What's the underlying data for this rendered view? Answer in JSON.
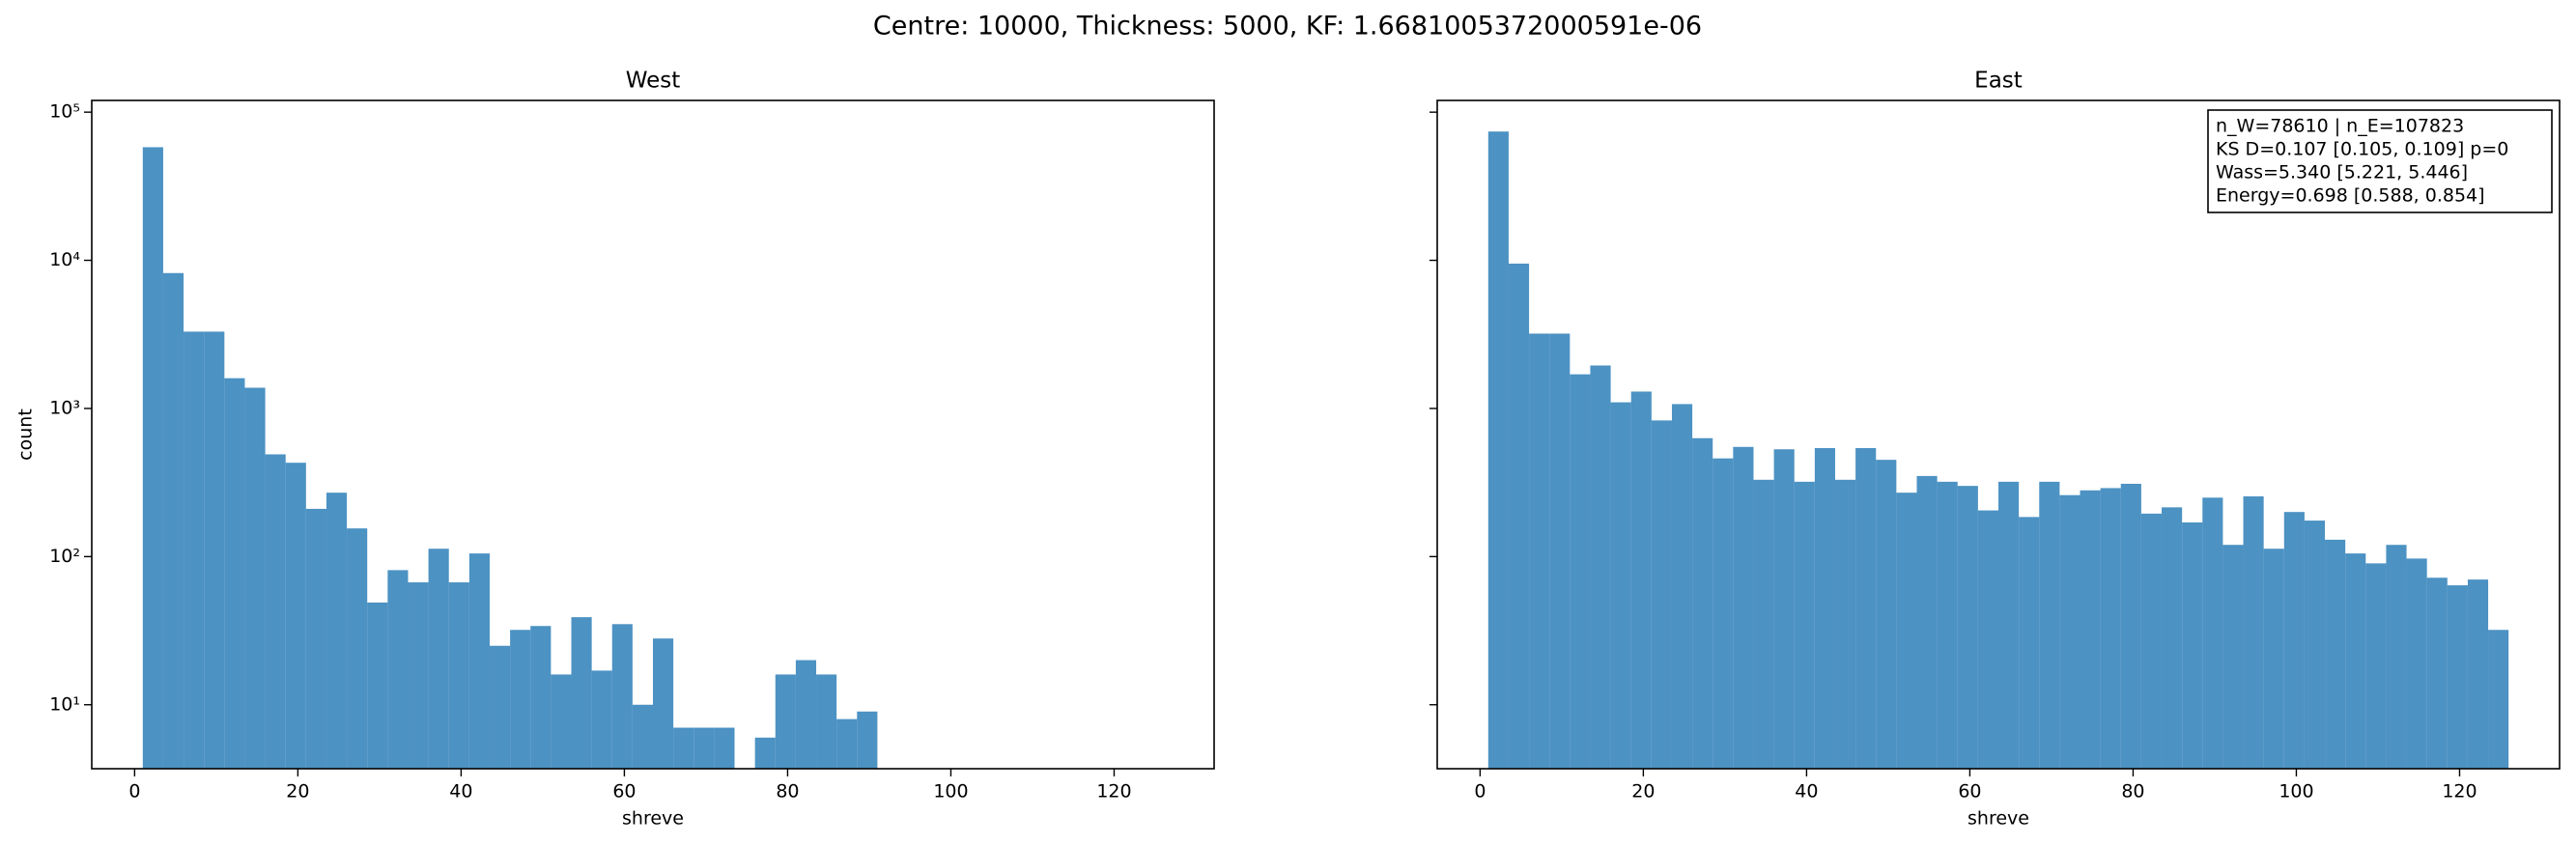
{
  "title": "Centre: 10000, Thickness: 5000, KF: 1.6681005372000591e-06",
  "chart_data": [
    {
      "type": "histogram",
      "title": "West",
      "xlabel": "shreve",
      "ylabel": "count",
      "color": "#1f77b4",
      "alpha": 0.8,
      "yscale": "log",
      "ytick_labels": true,
      "bins": [
        1,
        3.5,
        6,
        8.5,
        11,
        13.5,
        16,
        18.5,
        21,
        23.5,
        26,
        28.5,
        31,
        33.5,
        36,
        38.5,
        41,
        43.5,
        46,
        48.5,
        51,
        53.5,
        56,
        58.5,
        61,
        63.5,
        66,
        68.5,
        71,
        73.5,
        76,
        78.5,
        81,
        83.5,
        86,
        88.5,
        91,
        93.5,
        96,
        98.5,
        101,
        103.5,
        106,
        108.5,
        111,
        113.5,
        116,
        118.5,
        121,
        123.5,
        126
      ],
      "values": [
        58000,
        8200,
        3300,
        3300,
        1600,
        1380,
        490,
        430,
        210,
        270,
        155,
        49,
        81,
        67,
        113,
        67,
        105,
        25,
        32,
        34,
        16,
        39,
        17,
        35,
        10,
        28,
        7,
        7,
        7,
        0,
        6,
        16,
        20,
        16,
        8,
        9,
        0,
        0,
        0,
        0,
        0,
        0,
        0,
        0,
        0,
        0,
        0,
        0,
        0,
        0
      ],
      "xlim": [
        -5.25,
        132.25
      ],
      "xticks": [
        0,
        20,
        40,
        60,
        80,
        100,
        120
      ],
      "ylim": [
        3.7,
        120000
      ],
      "yticks": [
        {
          "value": 10,
          "label": "10¹"
        },
        {
          "value": 100,
          "label": "10²"
        },
        {
          "value": 1000,
          "label": "10³"
        },
        {
          "value": 10000,
          "label": "10⁴"
        },
        {
          "value": 100000,
          "label": "10⁵"
        }
      ]
    },
    {
      "type": "histogram",
      "title": "East",
      "xlabel": "shreve",
      "color": "#1f77b4",
      "alpha": 0.8,
      "yscale": "log",
      "ytick_labels": false,
      "bins": [
        1,
        3.5,
        6,
        8.5,
        11,
        13.5,
        16,
        18.5,
        21,
        23.5,
        26,
        28.5,
        31,
        33.5,
        36,
        38.5,
        41,
        43.5,
        46,
        48.5,
        51,
        53.5,
        56,
        58.5,
        61,
        63.5,
        66,
        68.5,
        71,
        73.5,
        76,
        78.5,
        81,
        83.5,
        86,
        88.5,
        91,
        93.5,
        96,
        98.5,
        101,
        103.5,
        106,
        108.5,
        111,
        113.5,
        116,
        118.5,
        121,
        123.5,
        126
      ],
      "values": [
        74000,
        9500,
        3200,
        3200,
        1700,
        1950,
        1100,
        1300,
        830,
        1070,
        630,
        460,
        550,
        330,
        530,
        320,
        540,
        330,
        540,
        450,
        270,
        350,
        320,
        300,
        205,
        320,
        185,
        320,
        260,
        280,
        290,
        310,
        195,
        215,
        170,
        250,
        120,
        255,
        113,
        200,
        175,
        130,
        105,
        90,
        120,
        97,
        72,
        64,
        70,
        32
      ],
      "xlim": [
        -5.25,
        132.25
      ],
      "xticks": [
        0,
        20,
        40,
        60,
        80,
        100,
        120
      ],
      "ylim": [
        3.7,
        120000
      ],
      "yticks": [
        10,
        100,
        1000,
        10000,
        100000
      ],
      "annotation": [
        "n_W=78610 | n_E=107823",
        "KS D=0.107 [0.105, 0.109]  p=0",
        "Wass=5.340 [5.221, 5.446]",
        "Energy=0.698 [0.588, 0.854]"
      ]
    }
  ]
}
